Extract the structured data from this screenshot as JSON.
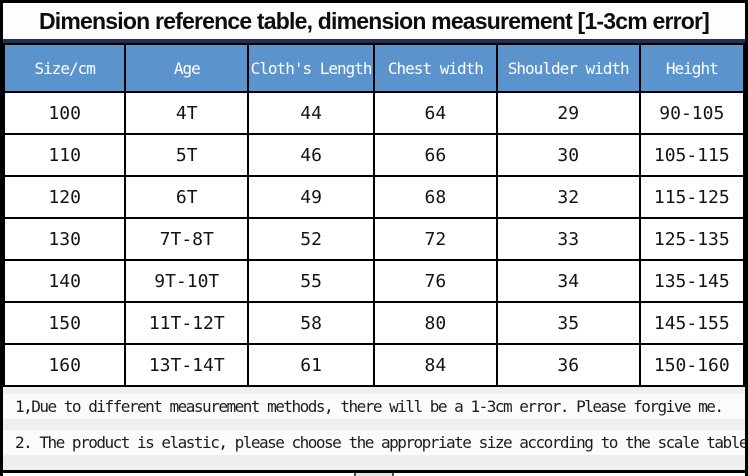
{
  "title": "Dimension reference table, dimension measurement [1-3cm error]",
  "chart_data": {
    "type": "table",
    "title": "Dimension reference table, dimension measurement [1-3cm error]",
    "columns": [
      "Size/cm",
      "Age",
      "Cloth's Length",
      "Chest width",
      "Shoulder width",
      "Height"
    ],
    "rows": [
      [
        "100",
        "4T",
        "44",
        "64",
        "29",
        "90-105"
      ],
      [
        "110",
        "5T",
        "46",
        "66",
        "30",
        "105-115"
      ],
      [
        "120",
        "6T",
        "49",
        "68",
        "32",
        "115-125"
      ],
      [
        "130",
        "7T-8T",
        "52",
        "72",
        "33",
        "125-135"
      ],
      [
        "140",
        "9T-10T",
        "55",
        "76",
        "34",
        "135-145"
      ],
      [
        "150",
        "11T-12T",
        "58",
        "80",
        "35",
        "145-155"
      ],
      [
        "160",
        "13T-14T",
        "61",
        "84",
        "36",
        "150-160"
      ]
    ],
    "notes": [
      "1,Due to different measurement methods, there will be a 1-3cm error. Please forgive me.",
      "2. The product is elastic, please choose the appropriate size according to the scale table."
    ]
  },
  "colors": {
    "header_bg": "#5b93cc",
    "header_text": "#ffffff",
    "grid_border": "#000000",
    "title_divider": "#1f3050",
    "footer_bg": "#efefef"
  }
}
